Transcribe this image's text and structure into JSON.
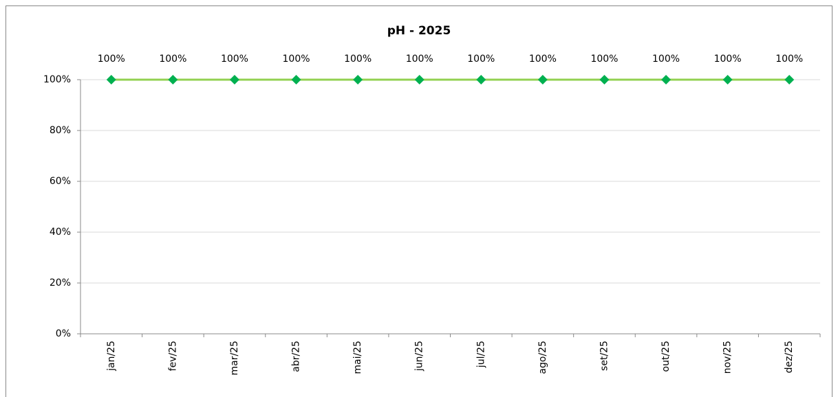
{
  "chart_data": {
    "type": "line",
    "title": "pH - 2025",
    "categories": [
      "jan/25",
      "fev/25",
      "mar/25",
      "abr/25",
      "mai/25",
      "jun/25",
      "jul/25",
      "ago/25",
      "set/25",
      "out/25",
      "nov/25",
      "dez/25"
    ],
    "series": [
      {
        "name": "pH",
        "line_color": "#92d050",
        "color": "#00b050",
        "values": [
          100,
          100,
          100,
          100,
          100,
          100,
          100,
          100,
          100,
          100,
          100,
          100
        ],
        "value_labels": [
          "100%",
          "100%",
          "100%",
          "100%",
          "100%",
          "100%",
          "100%",
          "100%",
          "100%",
          "100%",
          "100%",
          "100%"
        ]
      }
    ],
    "ylim": [
      0,
      100
    ],
    "yticks": [
      {
        "value": 0,
        "label": "0%"
      },
      {
        "value": 20,
        "label": "20%"
      },
      {
        "value": 40,
        "label": "40%"
      },
      {
        "value": 60,
        "label": "60%"
      },
      {
        "value": 80,
        "label": "80%"
      },
      {
        "value": 100,
        "label": "100%"
      }
    ],
    "grid": true
  }
}
